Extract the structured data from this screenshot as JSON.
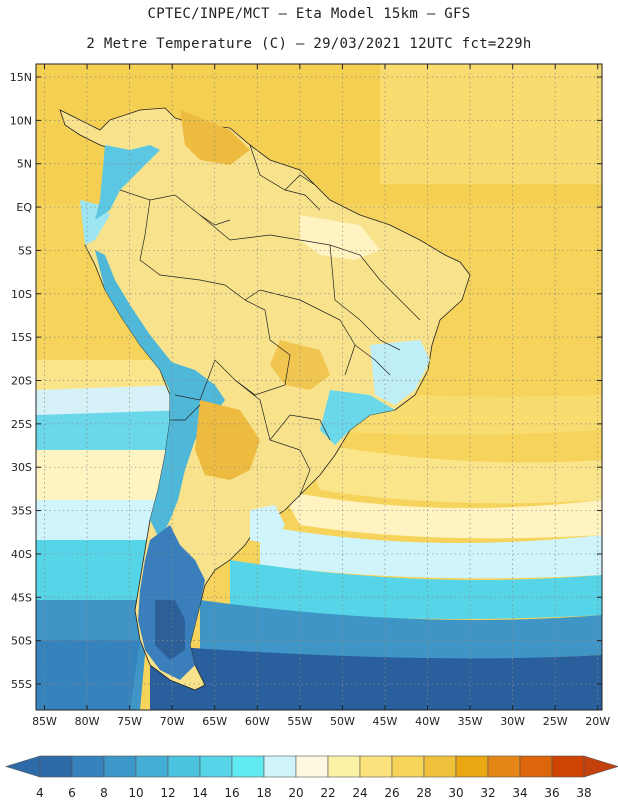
{
  "title": {
    "line1": "CPTEC/INPE/MCT –  Eta Model 15km – GFS",
    "line2": "2 Metre Temperature (C) – 29/03/2021 12UTC fct=229h"
  },
  "map": {
    "lat_labels": [
      "15N",
      "10N",
      "5N",
      "EQ",
      "5S",
      "10S",
      "15S",
      "20S",
      "25S",
      "30S",
      "35S",
      "40S",
      "45S",
      "50S",
      "55S"
    ],
    "lat_values": [
      15,
      10,
      5,
      0,
      -5,
      -10,
      -15,
      -20,
      -25,
      -30,
      -35,
      -40,
      -45,
      -50,
      -55
    ],
    "lon_labels": [
      "85W",
      "80W",
      "75W",
      "70W",
      "65W",
      "60W",
      "55W",
      "50W",
      "45W",
      "40W",
      "35W",
      "30W",
      "25W",
      "20W"
    ],
    "lon_values": [
      -85,
      -80,
      -75,
      -70,
      -65,
      -60,
      -55,
      -50,
      -45,
      -40,
      -35,
      -30,
      -25,
      -20
    ],
    "lat_range": [
      -58,
      16.5
    ],
    "lon_range": [
      -86,
      -19.5
    ]
  },
  "colorbar": {
    "labels": [
      "4",
      "6",
      "8",
      "10",
      "12",
      "14",
      "16",
      "18",
      "20",
      "22",
      "24",
      "26",
      "28",
      "30",
      "32",
      "34",
      "36",
      "38"
    ],
    "colors": [
      "#2c6aa8",
      "#3582bd",
      "#3c98c9",
      "#45aed6",
      "#4cc3df",
      "#57d5e8",
      "#62eaf3",
      "#d0f4fb",
      "#fff8e1",
      "#fdf1a6",
      "#fbe27c",
      "#f6d45a",
      "#f0c23c",
      "#eaa712",
      "#e58716",
      "#dd650a",
      "#cf4402"
    ],
    "left_arrow_color": "#2c6aa8",
    "right_arrow_color": "#c2410c"
  },
  "palette": {
    "sea_cold": "#2a5f9e",
    "sea_cool": "#3f96c6",
    "sea_mild": "#6bd7ea",
    "sea_warm": "#f6d35a",
    "land_base": "#f8e38c",
    "land_hot": "#edbb40",
    "andes": "#4fb7d8"
  }
}
